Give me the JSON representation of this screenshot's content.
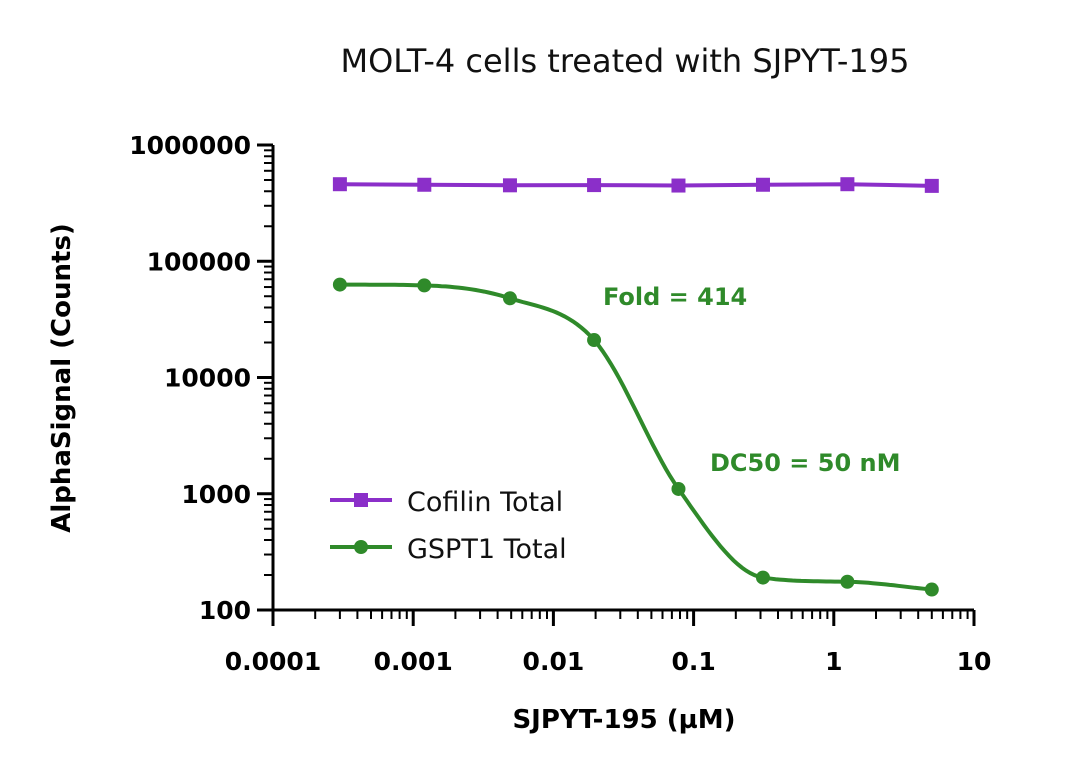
{
  "chart_data": {
    "type": "line",
    "title": "MOLT-4 cells treated with SJPYT-195",
    "xlabel": "SJPYT-195 (µM)",
    "ylabel": "AlphaSignal (Counts)",
    "xscale": "log",
    "yscale": "log",
    "xlim": [
      0.0001,
      10
    ],
    "ylim": [
      100,
      1000000
    ],
    "x_ticks": [
      "0.0001",
      "0.001",
      "0.01",
      "0.1",
      "1",
      "10"
    ],
    "y_ticks": [
      "100",
      "1000",
      "10000",
      "100000",
      "1000000"
    ],
    "legend_position": "bottom-left",
    "series": [
      {
        "name": "Cofilin Total",
        "color": "#8b2fc9",
        "marker": "square",
        "x": [
          0.0003,
          0.0012,
          0.0049,
          0.0195,
          0.078,
          0.3125,
          1.25,
          5
        ],
        "y": [
          460000,
          455000,
          450000,
          452000,
          448000,
          455000,
          460000,
          445000
        ]
      },
      {
        "name": "GSPT1 Total",
        "color": "#2f8a2a",
        "marker": "circle",
        "x": [
          0.0003,
          0.0012,
          0.0049,
          0.0195,
          0.078,
          0.3125,
          1.25,
          5
        ],
        "y": [
          63000,
          62000,
          48000,
          21000,
          1100,
          190,
          175,
          150
        ]
      }
    ],
    "annotations": [
      {
        "text": "Fold = 414",
        "color": "#2f8a2a"
      },
      {
        "text": "DC50 = 50 nM",
        "color": "#2f8a2a"
      }
    ]
  }
}
